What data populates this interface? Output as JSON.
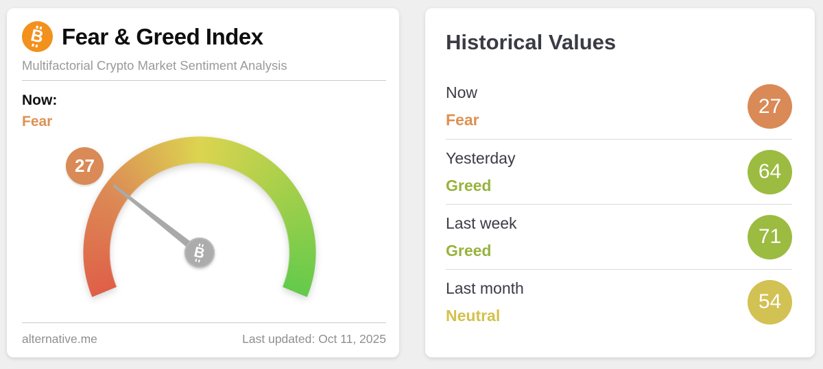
{
  "left_card": {
    "title": "Fear & Greed Index",
    "subtitle": "Multifactorial Crypto Market Sentiment Analysis",
    "now_label": "Now:",
    "now_sentiment": "Fear",
    "footer": {
      "source": "alternative.me",
      "last_updated": "Last updated: Oct 11, 2025"
    }
  },
  "right_card": {
    "title": "Historical Values",
    "rows": [
      {
        "label": "Now",
        "sentiment": "Fear",
        "value": 27,
        "sentiment_color": "#dd9151",
        "badge_color": "#d98a56"
      },
      {
        "label": "Yesterday",
        "sentiment": "Greed",
        "value": 64,
        "sentiment_color": "#97b33e",
        "badge_color": "#9cbb41"
      },
      {
        "label": "Last week",
        "sentiment": "Greed",
        "value": 71,
        "sentiment_color": "#97b33e",
        "badge_color": "#9cbb41"
      },
      {
        "label": "Last month",
        "sentiment": "Neutral",
        "value": 54,
        "sentiment_color": "#d3c14c",
        "badge_color": "#d2c153"
      }
    ]
  },
  "colors": {
    "fear_orange": "#dd9151",
    "greed_green": "#97b33e",
    "neutral_yellow": "#d3c14c",
    "bitcoin_orange": "#f2911c",
    "needle_gray": "#a9a9a9"
  },
  "chart_data": {
    "type": "gauge",
    "title": "Fear & Greed Index",
    "value": 27,
    "classification": "Fear",
    "min": 0,
    "max": 100,
    "arc_degrees": 225,
    "gradient_stops": [
      "#df5f48",
      "#dc8a55",
      "#dcd450",
      "#aed04b",
      "#64ca4b"
    ],
    "historical": [
      {
        "label": "Now",
        "value": 27,
        "classification": "Fear"
      },
      {
        "label": "Yesterday",
        "value": 64,
        "classification": "Greed"
      },
      {
        "label": "Last week",
        "value": 71,
        "classification": "Greed"
      },
      {
        "label": "Last month",
        "value": 54,
        "classification": "Neutral"
      }
    ]
  }
}
